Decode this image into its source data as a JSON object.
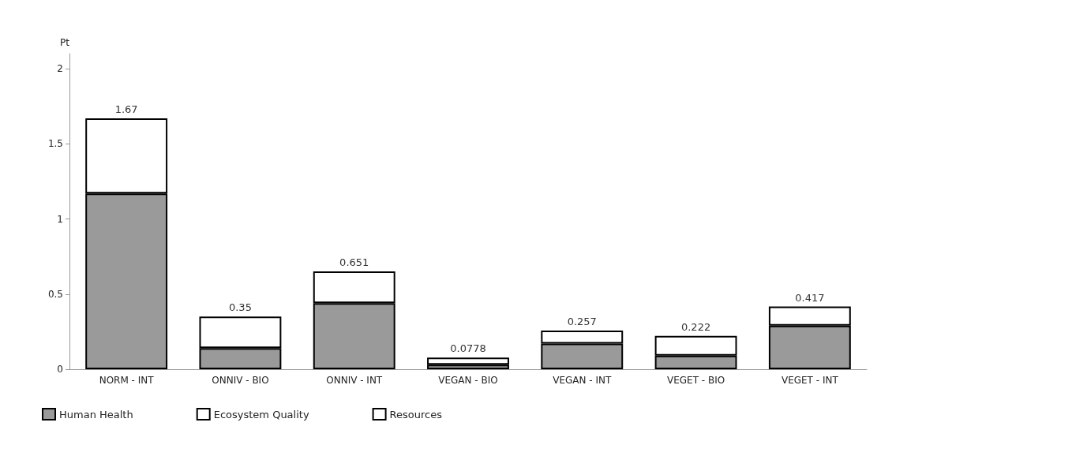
{
  "chart_data": {
    "type": "bar",
    "stacked": true,
    "ylabel": "Pt",
    "categories": [
      "NORM - INT",
      "ONNIV - BIO",
      "ONNIV - INT",
      "VEGAN - BIO",
      "VEGAN - INT",
      "VEGET - BIO",
      "VEGET - INT"
    ],
    "series": [
      {
        "name": "Human Health",
        "color": "#9a9a9a",
        "values": [
          1.17,
          0.14,
          0.44,
          0.03,
          0.17,
          0.09,
          0.29
        ]
      },
      {
        "name": "Ecosystem Quality",
        "color": "#ffffff",
        "values": [
          0.5,
          0.21,
          0.211,
          0.0478,
          0.087,
          0.132,
          0.127
        ]
      },
      {
        "name": "Resources",
        "color": "#ffffff",
        "values": [
          0,
          0,
          0,
          0,
          0,
          0,
          0
        ]
      }
    ],
    "totals": [
      "1.67",
      "0.35",
      "0.651",
      "0.0778",
      "0.257",
      "0.222",
      "0.417"
    ],
    "ylim": [
      0,
      2.1
    ],
    "yticks": [
      0,
      0.5,
      1,
      1.5,
      2
    ],
    "grid": false,
    "legend": "bottom left"
  }
}
